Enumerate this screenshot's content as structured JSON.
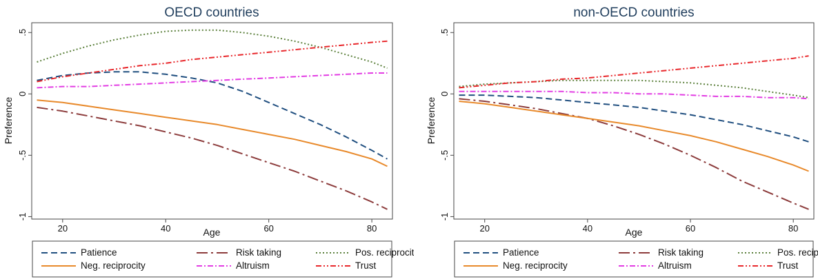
{
  "figure": {
    "legend_labels": [
      "Patience",
      "Risk taking",
      "Pos. reciprocity",
      "Neg. reciprocity",
      "Altruism",
      "Trust"
    ]
  },
  "chart_data": [
    {
      "type": "line",
      "title": "OECD countries",
      "xlabel": "Age",
      "ylabel": "Preference",
      "xlim": [
        14,
        84
      ],
      "ylim": [
        -1.02,
        0.58
      ],
      "xticks": [
        20,
        40,
        60,
        80
      ],
      "xtick_labels": [
        "20",
        "40",
        "60",
        "80"
      ],
      "yticks": [
        -1,
        -0.5,
        0,
        0.5
      ],
      "ytick_labels": [
        "-1",
        "-.5",
        "0",
        ".5"
      ],
      "grid": false,
      "legend_position": "bottom",
      "x": [
        15,
        20,
        25,
        30,
        35,
        40,
        45,
        50,
        55,
        60,
        65,
        70,
        75,
        80,
        83
      ],
      "series": [
        {
          "name": "Patience",
          "color": "#1f4e7f",
          "dash": "9 5",
          "values": [
            0.11,
            0.15,
            0.17,
            0.18,
            0.18,
            0.16,
            0.13,
            0.09,
            0.02,
            -0.07,
            -0.16,
            -0.25,
            -0.35,
            -0.46,
            -0.53
          ]
        },
        {
          "name": "Risk taking",
          "color": "#8c3b3b",
          "dash": "16 5 3 5",
          "values": [
            -0.11,
            -0.14,
            -0.18,
            -0.22,
            -0.26,
            -0.31,
            -0.36,
            -0.42,
            -0.49,
            -0.56,
            -0.63,
            -0.71,
            -0.79,
            -0.88,
            -0.94
          ]
        },
        {
          "name": "Pos. reciprocity",
          "color": "#5a7f3a",
          "dash": "2 3",
          "values": [
            0.26,
            0.33,
            0.39,
            0.44,
            0.48,
            0.51,
            0.52,
            0.52,
            0.5,
            0.47,
            0.43,
            0.38,
            0.32,
            0.26,
            0.21
          ]
        },
        {
          "name": "Neg. reciprocity",
          "color": "#e8892a",
          "dash": "",
          "values": [
            -0.05,
            -0.07,
            -0.1,
            -0.13,
            -0.16,
            -0.19,
            -0.22,
            -0.25,
            -0.29,
            -0.33,
            -0.37,
            -0.42,
            -0.47,
            -0.53,
            -0.59
          ]
        },
        {
          "name": "Altruism",
          "color": "#e23ce3",
          "dash": "8 3 2 3",
          "values": [
            0.05,
            0.06,
            0.06,
            0.07,
            0.08,
            0.09,
            0.1,
            0.11,
            0.12,
            0.13,
            0.14,
            0.15,
            0.16,
            0.17,
            0.17
          ]
        },
        {
          "name": "Trust",
          "color": "#e8262a",
          "dash": "8 3 2 3 2 3",
          "values": [
            0.1,
            0.14,
            0.17,
            0.2,
            0.23,
            0.25,
            0.28,
            0.3,
            0.32,
            0.34,
            0.36,
            0.38,
            0.4,
            0.42,
            0.43
          ]
        }
      ]
    },
    {
      "type": "line",
      "title": "non-OECD countries",
      "xlabel": "Age",
      "ylabel": "Preference",
      "xlim": [
        14,
        84
      ],
      "ylim": [
        -1.02,
        0.58
      ],
      "xticks": [
        20,
        40,
        60,
        80
      ],
      "xtick_labels": [
        "20",
        "40",
        "60",
        "80"
      ],
      "yticks": [
        -1,
        -0.5,
        0,
        0.5
      ],
      "ytick_labels": [
        "-1",
        "-.5",
        "0",
        ".5"
      ],
      "grid": false,
      "legend_position": "bottom",
      "x": [
        15,
        20,
        25,
        30,
        35,
        40,
        45,
        50,
        55,
        60,
        65,
        70,
        75,
        80,
        83
      ],
      "series": [
        {
          "name": "Patience",
          "color": "#1f4e7f",
          "dash": "9 5",
          "values": [
            -0.01,
            -0.01,
            -0.02,
            -0.03,
            -0.05,
            -0.07,
            -0.09,
            -0.11,
            -0.14,
            -0.17,
            -0.21,
            -0.25,
            -0.3,
            -0.35,
            -0.39
          ]
        },
        {
          "name": "Risk taking",
          "color": "#8c3b3b",
          "dash": "16 5 3 5",
          "values": [
            -0.04,
            -0.06,
            -0.09,
            -0.12,
            -0.16,
            -0.2,
            -0.26,
            -0.33,
            -0.41,
            -0.5,
            -0.6,
            -0.71,
            -0.8,
            -0.89,
            -0.94
          ]
        },
        {
          "name": "Pos. reciprocity",
          "color": "#5a7f3a",
          "dash": "2 3",
          "values": [
            0.06,
            0.08,
            0.09,
            0.1,
            0.11,
            0.11,
            0.11,
            0.11,
            0.1,
            0.09,
            0.07,
            0.05,
            0.02,
            -0.01,
            -0.03
          ]
        },
        {
          "name": "Neg. reciprocity",
          "color": "#e8892a",
          "dash": "",
          "values": [
            -0.06,
            -0.08,
            -0.11,
            -0.14,
            -0.17,
            -0.2,
            -0.23,
            -0.26,
            -0.3,
            -0.34,
            -0.39,
            -0.45,
            -0.51,
            -0.58,
            -0.63
          ]
        },
        {
          "name": "Altruism",
          "color": "#e23ce3",
          "dash": "8 3 2 3",
          "values": [
            0.02,
            0.02,
            0.02,
            0.02,
            0.02,
            0.01,
            0.01,
            0.0,
            0.0,
            -0.01,
            -0.02,
            -0.02,
            -0.03,
            -0.03,
            -0.04
          ]
        },
        {
          "name": "Trust",
          "color": "#e8262a",
          "dash": "8 3 2 3 2 3",
          "values": [
            0.05,
            0.07,
            0.09,
            0.1,
            0.12,
            0.13,
            0.15,
            0.17,
            0.19,
            0.21,
            0.23,
            0.25,
            0.27,
            0.29,
            0.31
          ]
        }
      ]
    }
  ]
}
